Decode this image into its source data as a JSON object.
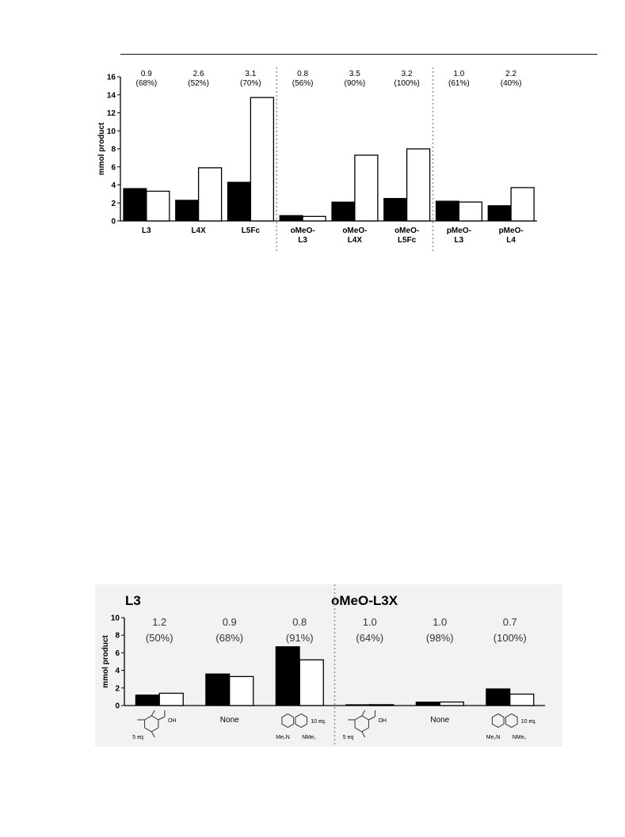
{
  "chart_data": [
    {
      "type": "bar",
      "ylabel": "mmol product",
      "ylim": [
        0,
        16
      ],
      "yticks": [
        0,
        2,
        4,
        6,
        8,
        10,
        12,
        14,
        16
      ],
      "categories": [
        "L3",
        "L4X",
        "L5Fc",
        "oMeO-\nL3",
        "oMeO-\nL4X",
        "oMeO-\nL5Fc",
        "pMeO-\nL3",
        "pMeO-\nL4"
      ],
      "series": [
        {
          "values": [
            3.6,
            2.3,
            4.3,
            0.6,
            2.1,
            2.5,
            2.2,
            1.7
          ]
        },
        {
          "values": [
            3.3,
            5.9,
            13.7,
            0.5,
            7.3,
            8.0,
            2.1,
            3.7
          ]
        }
      ],
      "top_labels": [
        [
          "0.9",
          "(68%)"
        ],
        [
          "2.6",
          "(52%)"
        ],
        [
          "3.1",
          "(70%)"
        ],
        [
          "0.8",
          "(56%)"
        ],
        [
          "3.5",
          "(90%)"
        ],
        [
          "3.2",
          "(100%)"
        ],
        [
          "1.0",
          "(61%)"
        ],
        [
          "2.2",
          "(40%)"
        ]
      ],
      "group_separators_after": [
        3,
        6
      ],
      "colors": {
        "series1": "#000000",
        "series2": "#ffffff",
        "separator": "#999999"
      }
    },
    {
      "type": "bar",
      "ylabel": "mmol product",
      "ylim": [
        0,
        10
      ],
      "yticks": [
        0,
        2,
        4,
        6,
        8,
        10
      ],
      "panel_titles": [
        "L3",
        "oMeO-L3X"
      ],
      "categories": [
        "5 eq",
        "None",
        "10 eq.",
        "5 eq",
        "None",
        "10 eq."
      ],
      "category_types": [
        "acid-structure",
        "text",
        "proton-sponge-structure",
        "acid-structure",
        "text",
        "proton-sponge-structure"
      ],
      "structure_labels": {
        "acid": "OH",
        "amine_left": "Me₂N",
        "amine_right": "NMe₂"
      },
      "series": [
        {
          "values": [
            1.2,
            3.6,
            6.7,
            0.1,
            0.4,
            1.9
          ]
        },
        {
          "values": [
            1.4,
            3.3,
            5.2,
            0.1,
            0.4,
            1.3
          ]
        }
      ],
      "top_labels": [
        [
          "1.2",
          "(50%)"
        ],
        [
          "0.9",
          "(68%)"
        ],
        [
          "0.8",
          "(91%)"
        ],
        [
          "1.0",
          "(64%)"
        ],
        [
          "1.0",
          "(98%)"
        ],
        [
          "0.7",
          "(100%)"
        ]
      ],
      "group_separators_after": [
        3
      ],
      "colors": {
        "series1": "#000000",
        "series2": "#ffffff",
        "separator": "#999999",
        "background": "#f2f2f2"
      }
    }
  ]
}
